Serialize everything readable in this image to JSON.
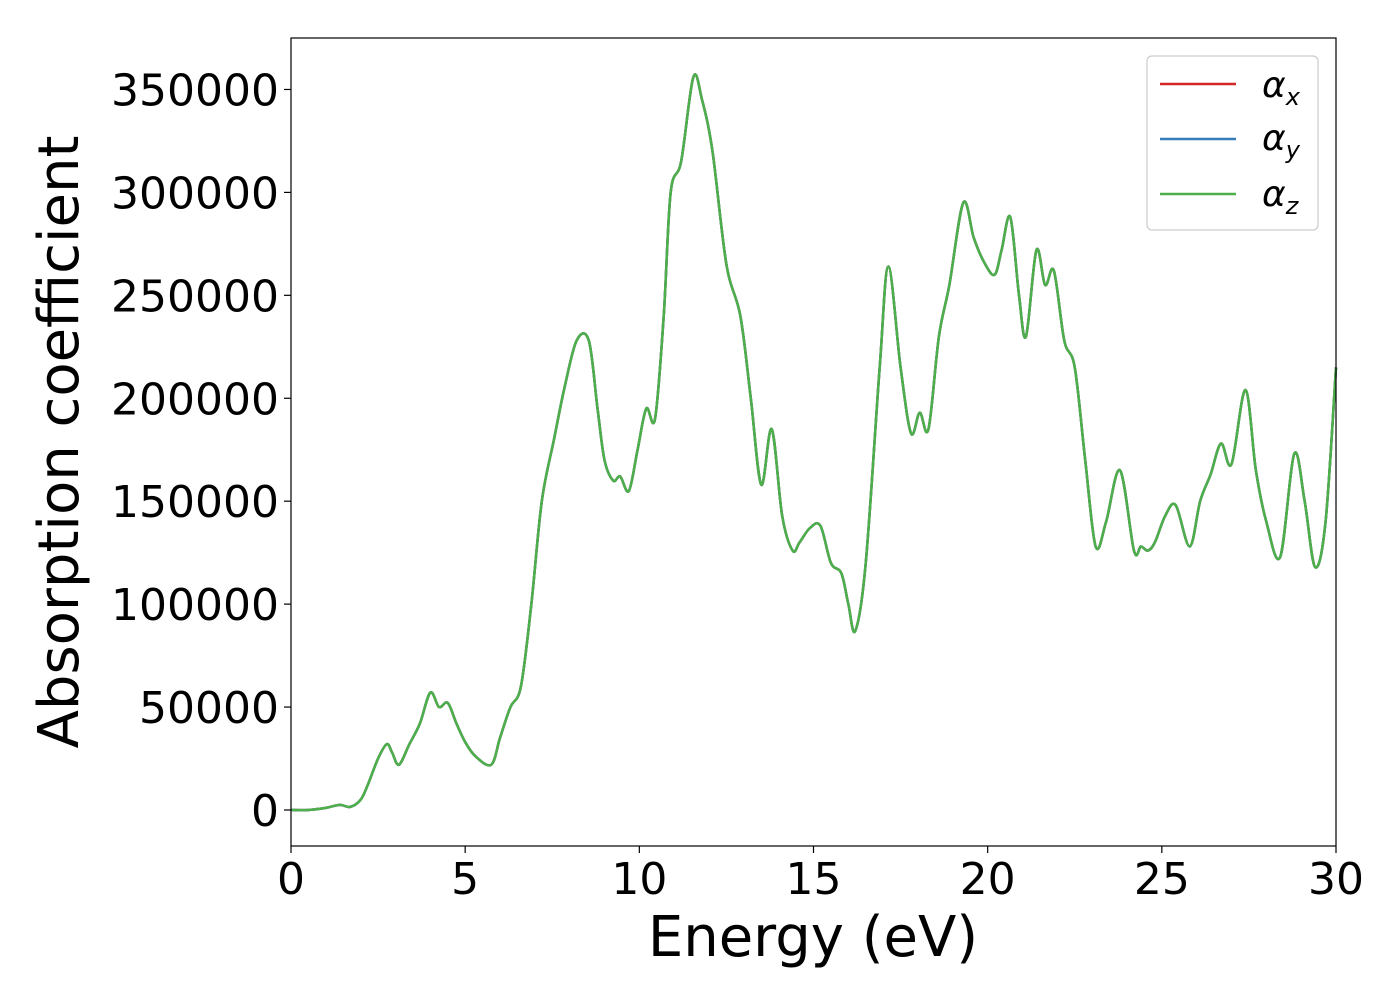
{
  "chart_data": {
    "type": "line",
    "title": "",
    "xlabel": "Energy (eV)",
    "ylabel": "Absorption coefficient",
    "xlim": [
      0,
      30
    ],
    "ylim": [
      -17500,
      375000
    ],
    "xticks": [
      0,
      5,
      10,
      15,
      20,
      25,
      30
    ],
    "xtick_labels": [
      "0",
      "5",
      "10",
      "15",
      "20",
      "25",
      "30"
    ],
    "yticks": [
      0,
      50000,
      100000,
      150000,
      200000,
      250000,
      300000,
      350000
    ],
    "ytick_labels": [
      "0",
      "50000",
      "100000",
      "150000",
      "200000",
      "250000",
      "300000",
      "350000"
    ],
    "grid": false,
    "legend_position": "top-right",
    "x": [
      0,
      0.5,
      1.0,
      1.4,
      1.7,
      2.0,
      2.2,
      2.5,
      2.75,
      2.9,
      3.1,
      3.4,
      3.7,
      4.0,
      4.25,
      4.5,
      4.75,
      5.0,
      5.3,
      5.75,
      6.0,
      6.3,
      6.6,
      6.9,
      7.2,
      7.55,
      7.85,
      8.2,
      8.55,
      8.8,
      9.0,
      9.25,
      9.45,
      9.7,
      9.95,
      10.2,
      10.45,
      10.7,
      10.9,
      11.2,
      11.55,
      11.8,
      12.1,
      12.5,
      12.9,
      13.2,
      13.5,
      13.8,
      14.1,
      14.4,
      14.6,
      14.9,
      15.2,
      15.5,
      15.8,
      16.0,
      16.2,
      16.5,
      16.9,
      17.15,
      17.5,
      17.8,
      18.05,
      18.3,
      18.6,
      18.9,
      19.3,
      19.6,
      19.9,
      20.2,
      20.4,
      20.65,
      20.9,
      21.1,
      21.4,
      21.65,
      21.9,
      22.2,
      22.5,
      22.8,
      23.1,
      23.4,
      23.8,
      24.2,
      24.4,
      24.6,
      24.8,
      25.1,
      25.4,
      25.8,
      26.1,
      26.4,
      26.7,
      27.0,
      27.4,
      27.7,
      28.0,
      28.4,
      28.8,
      29.1,
      29.4,
      29.7,
      30.0
    ],
    "series": [
      {
        "name": "α_x",
        "color": "#d62728",
        "values": [
          0,
          0,
          1000,
          2500,
          1500,
          5000,
          12000,
          25000,
          32000,
          28000,
          22000,
          32000,
          42000,
          57000,
          50000,
          52000,
          42000,
          33000,
          26000,
          22000,
          35000,
          50000,
          60000,
          100000,
          150000,
          180000,
          205000,
          228000,
          228000,
          195000,
          170000,
          160000,
          162000,
          155000,
          175000,
          195000,
          190000,
          240000,
          300000,
          315000,
          356000,
          345000,
          320000,
          265000,
          240000,
          200000,
          158000,
          185000,
          143000,
          126000,
          130000,
          137000,
          138000,
          120000,
          115000,
          100000,
          87000,
          120000,
          215000,
          264000,
          215000,
          183000,
          193000,
          185000,
          230000,
          255000,
          295000,
          278000,
          266000,
          260000,
          272000,
          288000,
          250000,
          230000,
          272000,
          255000,
          262000,
          228000,
          215000,
          170000,
          128000,
          140000,
          165000,
          126000,
          128000,
          126000,
          130000,
          143000,
          148000,
          128000,
          150000,
          163000,
          178000,
          168000,
          204000,
          165000,
          140000,
          123000,
          173000,
          150000,
          118000,
          140000,
          215000
        ]
      },
      {
        "name": "α_y",
        "color": "#377eb8",
        "values": [
          0,
          0,
          1000,
          2500,
          1500,
          5000,
          12000,
          25000,
          32000,
          28000,
          22000,
          32000,
          42000,
          57000,
          50000,
          52000,
          42000,
          33000,
          26000,
          22000,
          35000,
          50000,
          60000,
          100000,
          150000,
          180000,
          205000,
          228000,
          228000,
          195000,
          170000,
          160000,
          162000,
          155000,
          175000,
          195000,
          190000,
          240000,
          300000,
          315000,
          356000,
          345000,
          320000,
          265000,
          240000,
          200000,
          158000,
          185000,
          143000,
          126000,
          130000,
          137000,
          138000,
          120000,
          115000,
          100000,
          87000,
          120000,
          215000,
          264000,
          215000,
          183000,
          193000,
          185000,
          230000,
          255000,
          295000,
          278000,
          266000,
          260000,
          272000,
          288000,
          250000,
          230000,
          272000,
          255000,
          262000,
          228000,
          215000,
          170000,
          128000,
          140000,
          165000,
          126000,
          128000,
          126000,
          130000,
          143000,
          148000,
          128000,
          150000,
          163000,
          178000,
          168000,
          204000,
          165000,
          140000,
          123000,
          173000,
          150000,
          118000,
          140000,
          215000
        ]
      },
      {
        "name": "α_z",
        "color": "#4daf4a",
        "values": [
          0,
          0,
          1000,
          2500,
          1500,
          5000,
          12000,
          25000,
          32000,
          28000,
          22000,
          32000,
          42000,
          57000,
          50000,
          52000,
          42000,
          33000,
          26000,
          22000,
          35000,
          50000,
          60000,
          100000,
          150000,
          180000,
          205000,
          228000,
          228000,
          195000,
          170000,
          160000,
          162000,
          155000,
          175000,
          195000,
          190000,
          240000,
          300000,
          315000,
          356000,
          345000,
          320000,
          265000,
          240000,
          200000,
          158000,
          185000,
          143000,
          126000,
          130000,
          137000,
          138000,
          120000,
          115000,
          100000,
          87000,
          120000,
          215000,
          264000,
          215000,
          183000,
          193000,
          185000,
          230000,
          255000,
          295000,
          278000,
          266000,
          260000,
          272000,
          288000,
          250000,
          230000,
          272000,
          255000,
          262000,
          228000,
          215000,
          170000,
          128000,
          140000,
          165000,
          126000,
          128000,
          126000,
          130000,
          143000,
          148000,
          128000,
          150000,
          163000,
          178000,
          168000,
          204000,
          165000,
          140000,
          123000,
          173000,
          150000,
          118000,
          140000,
          215000
        ]
      }
    ],
    "legend": [
      {
        "symbol": "α",
        "subscript": "x",
        "color": "#d62728"
      },
      {
        "symbol": "α",
        "subscript": "y",
        "color": "#377eb8"
      },
      {
        "symbol": "α",
        "subscript": "z",
        "color": "#4daf4a"
      }
    ]
  }
}
